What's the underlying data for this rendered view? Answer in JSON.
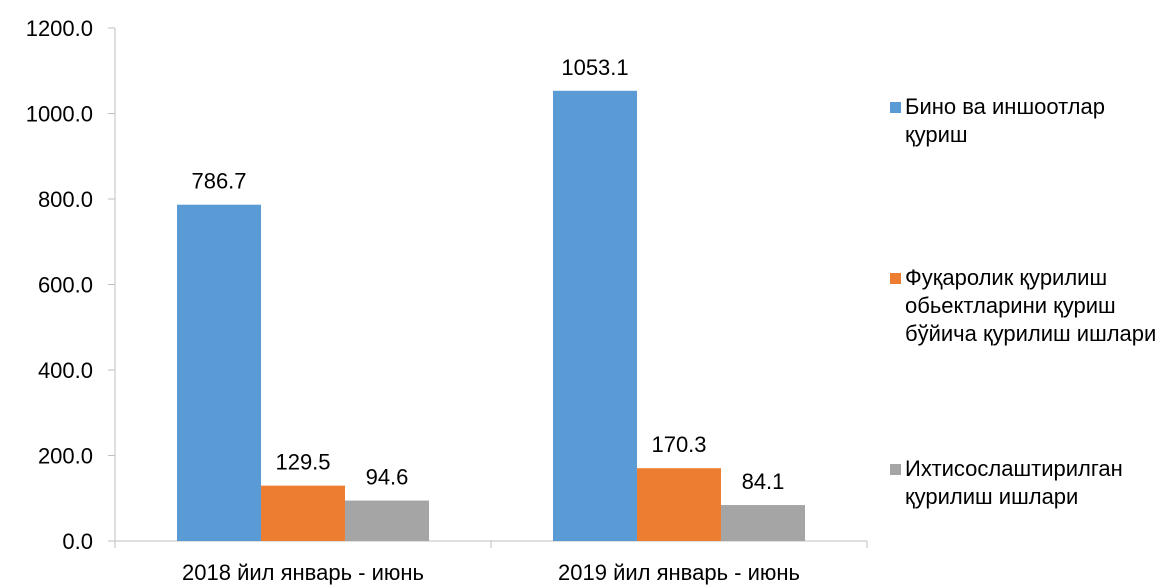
{
  "chart_data": {
    "type": "bar",
    "categories": [
      "2018 йил январь - июнь",
      "2019 йил январь - июнь"
    ],
    "series": [
      {
        "name": "Бино ва иншоотлар қуриш",
        "values": [
          786.7,
          1053.1
        ],
        "color": "#5b9bd5"
      },
      {
        "name": "Фуқаролик қурилиш обьектларини қуриш бўйича қурилиш ишлари",
        "values": [
          129.5,
          170.3
        ],
        "color": "#ed7d31"
      },
      {
        "name": "Ихтисослаштирилган қурилиш ишлари",
        "values": [
          94.6,
          84.1
        ],
        "color": "#a5a5a5"
      }
    ],
    "y_ticks": [
      "0.0",
      "200.0",
      "400.0",
      "600.0",
      "800.0",
      "1000.0",
      "1200.0"
    ],
    "ylim": [
      0,
      1200
    ],
    "data_labels": [
      [
        "786.7",
        "1053.1"
      ],
      [
        "129.5",
        "170.3"
      ],
      [
        "94.6",
        "84.1"
      ]
    ],
    "legend_position": "right",
    "grid": false
  }
}
